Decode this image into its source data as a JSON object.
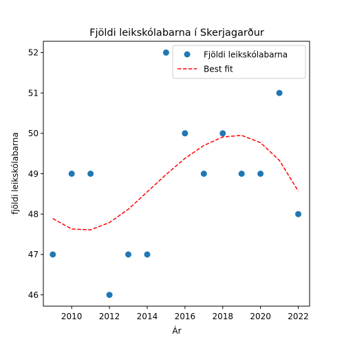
{
  "chart_data": {
    "type": "scatter",
    "title": "Fjöldi leikskólabarna í Skerjagarður",
    "xlabel": "Ár",
    "ylabel": "fjöldi leikskólabarna",
    "xlim": [
      2008.5,
      2022.6
    ],
    "ylim": [
      45.72,
      52.28
    ],
    "xticks": [
      2010,
      2012,
      2014,
      2016,
      2018,
      2020,
      2022
    ],
    "yticks": [
      46,
      47,
      48,
      49,
      50,
      51,
      52
    ],
    "grid": false,
    "legend_position": "top-right",
    "series": [
      {
        "name": "Fjöldi leikskólabarna",
        "kind": "scatter",
        "color": "#1f77b4",
        "x": [
          2009,
          2010,
          2011,
          2012,
          2013,
          2014,
          2015,
          2016,
          2017,
          2018,
          2019,
          2020,
          2021,
          2022
        ],
        "y": [
          47,
          49,
          49,
          46,
          47,
          47,
          52,
          50,
          49,
          50,
          49,
          49,
          51,
          48
        ]
      },
      {
        "name": "Best fit",
        "kind": "line",
        "style": "dashed",
        "color": "#ff0000",
        "x": [
          2009,
          2010,
          2011,
          2012,
          2013,
          2014,
          2015,
          2016,
          2017,
          2018,
          2019,
          2020,
          2021,
          2022
        ],
        "y": [
          47.89,
          47.63,
          47.61,
          47.79,
          48.12,
          48.55,
          48.98,
          49.38,
          49.7,
          49.91,
          49.95,
          49.77,
          49.33,
          48.57
        ]
      }
    ]
  }
}
